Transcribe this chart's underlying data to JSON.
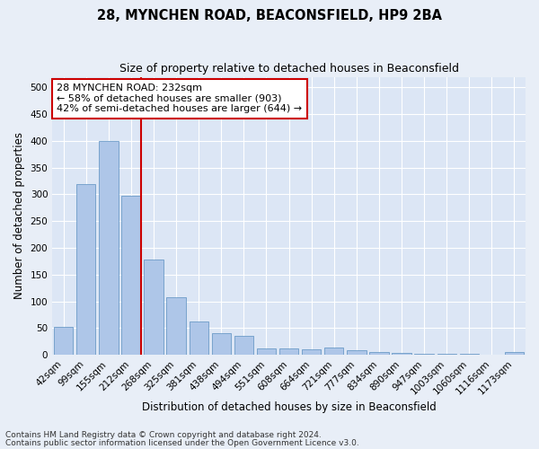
{
  "title": "28, MYNCHEN ROAD, BEACONSFIELD, HP9 2BA",
  "subtitle": "Size of property relative to detached houses in Beaconsfield",
  "xlabel": "Distribution of detached houses by size in Beaconsfield",
  "ylabel": "Number of detached properties",
  "footnote1": "Contains HM Land Registry data © Crown copyright and database right 2024.",
  "footnote2": "Contains public sector information licensed under the Open Government Licence v3.0.",
  "categories": [
    "42sqm",
    "99sqm",
    "155sqm",
    "212sqm",
    "268sqm",
    "325sqm",
    "381sqm",
    "438sqm",
    "494sqm",
    "551sqm",
    "608sqm",
    "664sqm",
    "721sqm",
    "777sqm",
    "834sqm",
    "890sqm",
    "947sqm",
    "1003sqm",
    "1060sqm",
    "1116sqm",
    "1173sqm"
  ],
  "values": [
    52,
    320,
    400,
    297,
    178,
    108,
    63,
    41,
    36,
    11,
    11,
    10,
    14,
    9,
    5,
    3,
    2,
    1,
    1,
    0,
    5
  ],
  "bar_color": "#aec6e8",
  "bar_edge_color": "#5a8fc0",
  "annotation_text": "28 MYNCHEN ROAD: 232sqm\n← 58% of detached houses are smaller (903)\n42% of semi-detached houses are larger (644) →",
  "annotation_box_color": "#ffffff",
  "annotation_box_edge": "#cc0000",
  "vline_color": "#cc0000",
  "ylim": [
    0,
    520
  ],
  "yticks": [
    0,
    50,
    100,
    150,
    200,
    250,
    300,
    350,
    400,
    450,
    500
  ],
  "background_color": "#e8eef7",
  "plot_bg_color": "#dce6f5",
  "grid_color": "#ffffff",
  "title_fontsize": 10.5,
  "subtitle_fontsize": 9,
  "axis_label_fontsize": 8.5,
  "tick_fontsize": 7.5,
  "annotation_fontsize": 8,
  "footnote_fontsize": 6.5
}
